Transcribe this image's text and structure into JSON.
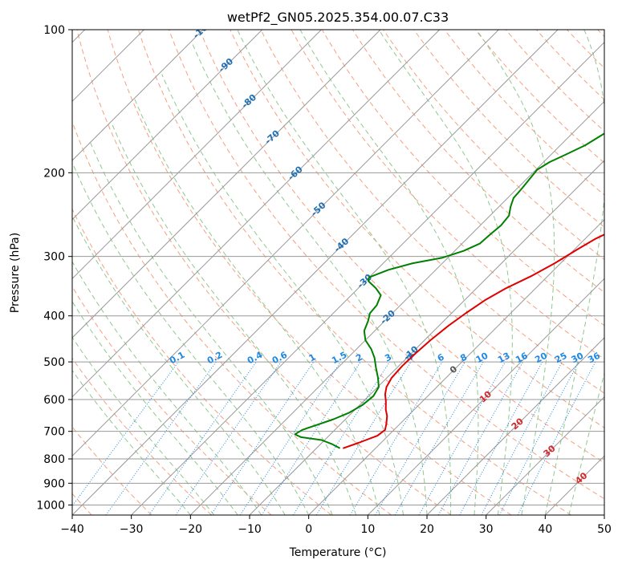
{
  "chart_data": {
    "type": "line",
    "title": "wetPf2_GN05.2025.354.00.07.C33",
    "xlabel": "Temperature (°C)",
    "ylabel": "Pressure (hPa)",
    "xlim": [
      -40,
      50
    ],
    "ylim": [
      1050,
      100
    ],
    "y_scale": "log",
    "grid": true,
    "x_ticks": [
      -40,
      -30,
      -20,
      -10,
      0,
      10,
      20,
      30,
      40,
      50
    ],
    "y_ticks": [
      100,
      200,
      300,
      400,
      500,
      600,
      700,
      800,
      900,
      1000
    ],
    "colors": {
      "temperature": "#e00000",
      "dewpoint": "#008000",
      "dry_adiabat": "#f5a080",
      "moist_adiabat": "#90c890",
      "mixing_ratio": "#1e88e5",
      "isotherm": "#999999",
      "frame": "#000000"
    },
    "series": [
      {
        "color": "#e00000",
        "points": [
          [
            -5.5,
            760
          ],
          [
            -3.8,
            740
          ],
          [
            -1.8,
            715
          ],
          [
            -1.5,
            695
          ],
          [
            -2.3,
            675
          ],
          [
            -3.5,
            650
          ],
          [
            -4.8,
            630
          ],
          [
            -6.2,
            605
          ],
          [
            -7.5,
            585
          ],
          [
            -8.5,
            565
          ],
          [
            -9.2,
            540
          ],
          [
            -9.4,
            510
          ],
          [
            -9.3,
            480
          ],
          [
            -9.0,
            450
          ],
          [
            -8.4,
            420
          ],
          [
            -7.6,
            395
          ],
          [
            -6.5,
            370
          ],
          [
            -5.0,
            350
          ],
          [
            -2.8,
            330
          ],
          [
            -1.0,
            310
          ],
          [
            0.5,
            290
          ],
          [
            1.8,
            275
          ],
          [
            4.0,
            260
          ],
          [
            7.5,
            245
          ],
          [
            11.5,
            230
          ],
          [
            14.5,
            215
          ],
          [
            17.3,
            200
          ],
          [
            20.5,
            185
          ],
          [
            24.5,
            168
          ],
          [
            28.5,
            152
          ],
          [
            32.5,
            137
          ],
          [
            36.5,
            124
          ],
          [
            40.5,
            112
          ],
          [
            44.5,
            100
          ]
        ]
      },
      {
        "color": "#008000",
        "points": [
          [
            -6.0,
            760
          ],
          [
            -8.0,
            745
          ],
          [
            -10.5,
            730
          ],
          [
            -14.5,
            720
          ],
          [
            -16.0,
            710
          ],
          [
            -15.5,
            695
          ],
          [
            -14.0,
            680
          ],
          [
            -12.0,
            660
          ],
          [
            -10.5,
            640
          ],
          [
            -9.5,
            615
          ],
          [
            -9.2,
            590
          ],
          [
            -9.8,
            565
          ],
          [
            -11.5,
            540
          ],
          [
            -13.5,
            515
          ],
          [
            -15.5,
            490
          ],
          [
            -17.5,
            470
          ],
          [
            -20.0,
            450
          ],
          [
            -21.8,
            430
          ],
          [
            -22.8,
            410
          ],
          [
            -23.8,
            395
          ],
          [
            -24.0,
            380
          ],
          [
            -25.0,
            362
          ],
          [
            -27.0,
            350
          ],
          [
            -29.5,
            338
          ],
          [
            -30.0,
            332
          ],
          [
            -28.0,
            320
          ],
          [
            -25.0,
            310
          ],
          [
            -21.0,
            302
          ],
          [
            -18.5,
            292
          ],
          [
            -17.0,
            282
          ],
          [
            -16.8,
            270
          ],
          [
            -16.5,
            258
          ],
          [
            -16.8,
            246
          ],
          [
            -18.0,
            236
          ],
          [
            -19.0,
            226
          ],
          [
            -19.2,
            216
          ],
          [
            -19.5,
            206
          ],
          [
            -19.8,
            197
          ],
          [
            -19.0,
            190
          ],
          [
            -17.5,
            183
          ],
          [
            -15.8,
            175
          ],
          [
            -14.5,
            165
          ],
          [
            -13.5,
            156
          ],
          [
            -12.0,
            147
          ],
          [
            -10.0,
            138
          ],
          [
            -8.0,
            128
          ],
          [
            -6.0,
            118
          ],
          [
            -4.0,
            108
          ],
          [
            -1.5,
            100
          ]
        ]
      }
    ],
    "isotherm_labels": [
      "-100",
      "-90",
      "-80",
      "-70",
      "-60",
      "-50",
      "-40",
      "-30",
      "-20",
      "-10",
      "0",
      "10",
      "20",
      "30",
      "40"
    ],
    "isotherm_label_colors": {
      "cold": "#1f6fb4",
      "zero": "#555555",
      "warm": "#d62728"
    },
    "mixing_ratio_labels": [
      "0.1",
      "0.2",
      "0.4",
      "0.6",
      "1",
      "1.5",
      "2",
      "3",
      "4",
      "6",
      "8",
      "10",
      "13",
      "16",
      "20",
      "25",
      "30",
      "36"
    ]
  }
}
